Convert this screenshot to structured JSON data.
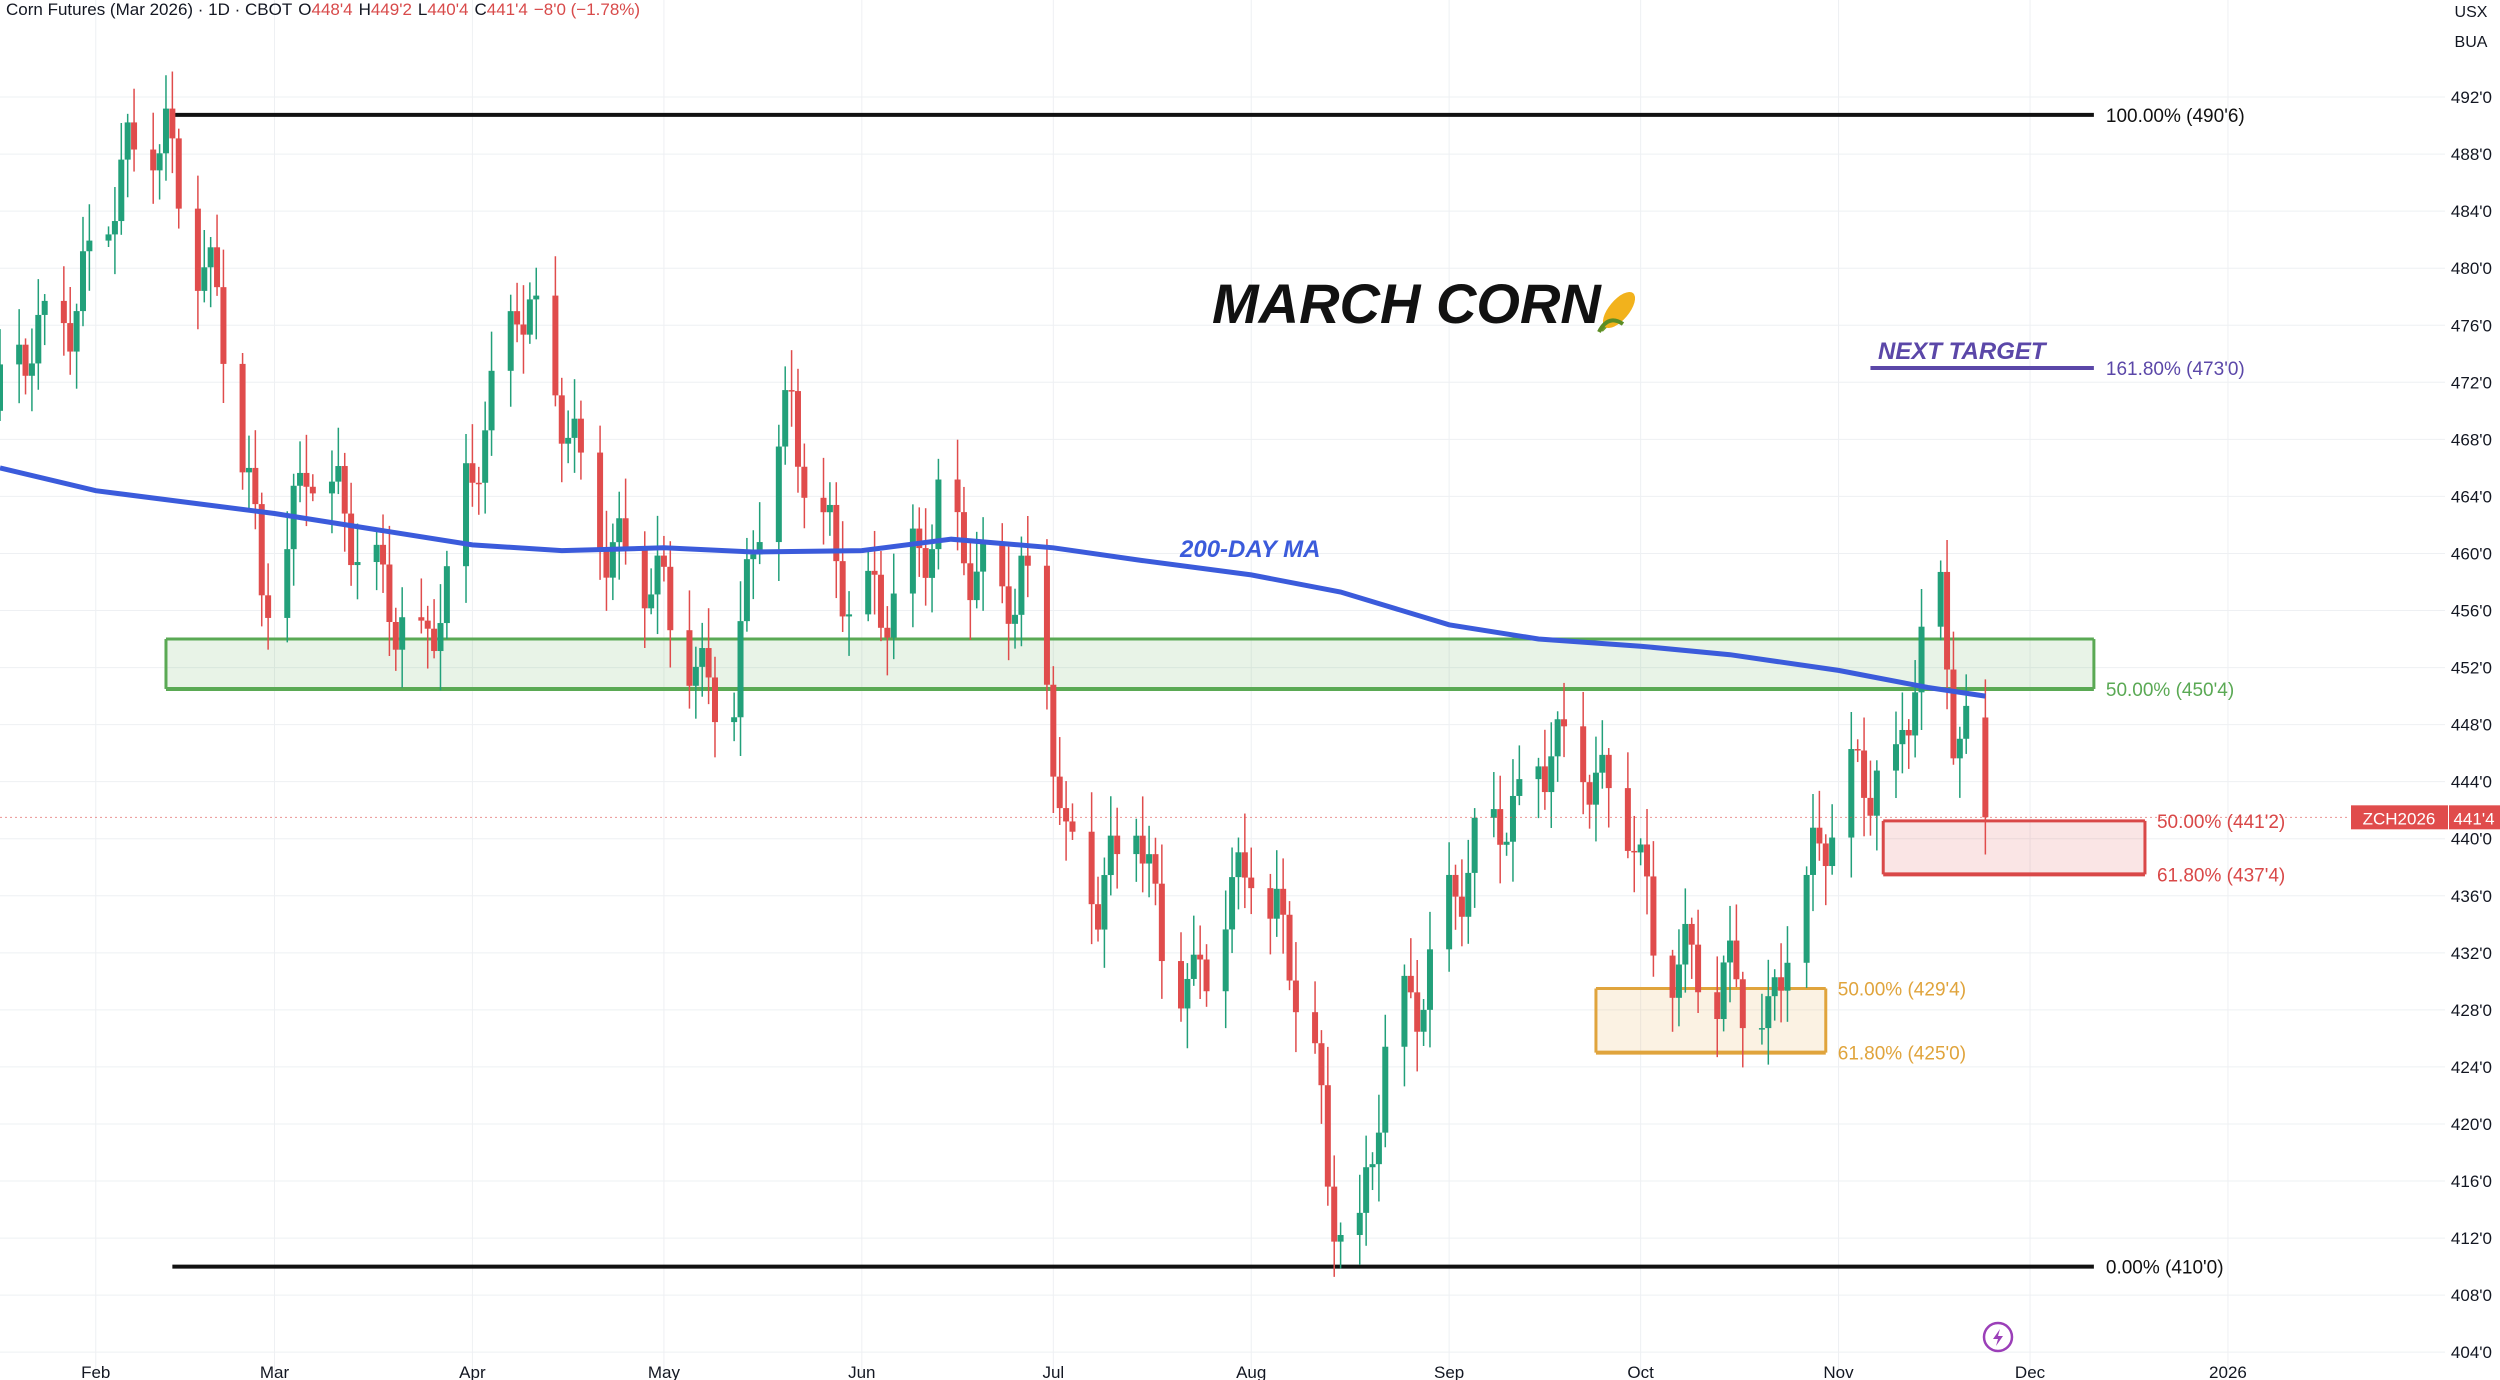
{
  "header": {
    "symbol_title": "Corn Futures (Mar 2026) · 1D · CBOT",
    "open_label": "O",
    "open": "448'4",
    "high_label": "H",
    "high": "449'2",
    "low_label": "L",
    "low": "440'4",
    "close_label": "C",
    "close": "441'4",
    "change": "−8'0 (−1.78%)"
  },
  "scale_buttons": [
    "USX",
    "BUA"
  ],
  "colors": {
    "up": "#22a07a",
    "down": "#e04c4c",
    "ma": "#3b5bdb",
    "fib_green": "#5aa954",
    "fib_red": "#d94848",
    "fib_orange": "#e0a43c",
    "target": "#5b47a8",
    "grid": "#eef0f3",
    "axis_text": "#131722"
  },
  "chart_data": {
    "type": "candlestick",
    "title": "MARCH CORN",
    "title_icon": "corn-icon",
    "ma_label": "200-DAY MA",
    "target_label": "NEXT TARGET",
    "y_ticks": [
      "492'0",
      "488'0",
      "484'0",
      "480'0",
      "476'0",
      "472'0",
      "468'0",
      "464'0",
      "460'0",
      "456'0",
      "452'0",
      "448'0",
      "444'0",
      "440'0",
      "436'0",
      "432'0",
      "428'0",
      "424'0",
      "420'0",
      "416'0",
      "412'0",
      "408'0",
      "404'0"
    ],
    "y_tick_values": [
      492,
      488,
      484,
      480,
      476,
      472,
      468,
      464,
      460,
      456,
      452,
      448,
      444,
      440,
      436,
      432,
      428,
      424,
      420,
      416,
      412,
      408,
      404
    ],
    "ylim": [
      402.4,
      496
    ],
    "x_ticks": [
      {
        "label": "Feb",
        "date": "2025-02-01"
      },
      {
        "label": "Mar",
        "date": "2025-03-01"
      },
      {
        "label": "Apr",
        "date": "2025-04-01"
      },
      {
        "label": "May",
        "date": "2025-05-01"
      },
      {
        "label": "Jun",
        "date": "2025-06-01"
      },
      {
        "label": "Jul",
        "date": "2025-07-01"
      },
      {
        "label": "Aug",
        "date": "2025-08-01"
      },
      {
        "label": "Sep",
        "date": "2025-09-01"
      },
      {
        "label": "Oct",
        "date": "2025-10-01"
      },
      {
        "label": "Nov",
        "date": "2025-11-01"
      },
      {
        "label": "Dec",
        "date": "2025-12-01"
      },
      {
        "label": "2026",
        "date": "2026-01-01"
      }
    ],
    "xlim": [
      "2025-01-17",
      "2026-02-04"
    ],
    "price_path": {
      "dates": [
        "2025-01-17",
        "2025-01-22",
        "2025-01-28",
        "2025-02-03",
        "2025-02-07",
        "2025-02-12",
        "2025-02-17",
        "2025-02-20",
        "2025-02-24",
        "2025-02-27",
        "2025-03-03",
        "2025-03-06",
        "2025-03-10",
        "2025-03-14",
        "2025-03-19",
        "2025-03-24",
        "2025-03-28",
        "2025-04-02",
        "2025-04-08",
        "2025-04-14",
        "2025-04-18",
        "2025-04-22",
        "2025-04-28",
        "2025-05-02",
        "2025-05-07",
        "2025-05-12",
        "2025-05-16",
        "2025-05-21",
        "2025-05-27",
        "2025-05-30",
        "2025-06-04",
        "2025-06-09",
        "2025-06-13",
        "2025-06-18",
        "2025-06-23",
        "2025-06-26",
        "2025-06-30",
        "2025-07-03",
        "2025-07-08",
        "2025-07-14",
        "2025-07-18",
        "2025-07-23",
        "2025-07-28",
        "2025-08-01",
        "2025-08-06",
        "2025-08-11",
        "2025-08-13",
        "2025-08-18",
        "2025-08-22",
        "2025-08-27",
        "2025-09-02",
        "2025-09-08",
        "2025-09-12",
        "2025-09-17",
        "2025-09-22",
        "2025-09-25",
        "2025-09-30",
        "2025-10-03",
        "2025-10-08",
        "2025-10-13",
        "2025-10-16",
        "2025-10-21",
        "2025-10-24",
        "2025-10-29",
        "2025-11-03",
        "2025-11-07",
        "2025-11-10",
        "2025-11-13",
        "2025-11-17",
        "2025-11-19",
        "2025-11-21",
        "2025-11-24"
      ],
      "values": [
        470,
        474,
        478,
        484,
        487,
        490,
        482,
        477,
        466,
        458,
        462,
        467,
        463,
        460,
        458,
        453,
        456,
        468,
        479,
        470,
        466,
        462,
        458,
        455,
        452,
        451,
        462,
        470,
        462,
        456,
        455,
        460,
        464,
        458,
        456,
        460,
        452,
        438,
        435,
        444,
        432,
        428,
        436,
        440,
        432,
        424,
        416,
        413,
        424,
        428,
        438,
        440,
        441,
        448,
        446,
        442,
        440,
        434,
        432,
        428,
        430,
        428,
        434,
        438,
        444,
        446,
        445,
        451,
        455,
        448,
        448,
        441
      ]
    },
    "ma_200": {
      "dates": [
        "2025-01-17",
        "2025-02-01",
        "2025-03-01",
        "2025-04-01",
        "2025-04-15",
        "2025-05-01",
        "2025-05-15",
        "2025-06-01",
        "2025-06-15",
        "2025-07-01",
        "2025-07-15",
        "2025-08-01",
        "2025-08-15",
        "2025-09-01",
        "2025-09-15",
        "2025-10-01",
        "2025-10-15",
        "2025-11-01",
        "2025-11-15",
        "2025-11-24"
      ],
      "values": [
        466,
        464.4,
        462.8,
        460.6,
        460.2,
        460.4,
        460.1,
        460.2,
        461,
        460.4,
        459.5,
        458.5,
        457.3,
        455,
        454,
        453.5,
        452.9,
        451.8,
        450.6,
        450
      ]
    },
    "fib_levels": [
      {
        "label": "100.00% (490'6)",
        "value": 490.75,
        "color": "#111111",
        "from": "2025-02-13",
        "to": "2025-12-11"
      },
      {
        "label": "0.00% (410'0)",
        "value": 410,
        "color": "#111111",
        "from": "2025-02-13",
        "to": "2025-12-11"
      },
      {
        "label": "161.80% (473'0)",
        "value": 473,
        "color": "#5b47a8",
        "from": "2025-11-06",
        "to": "2025-12-11"
      }
    ],
    "zones": [
      {
        "name": "green-fib-zone",
        "top": 454.0,
        "bottom": 450.5,
        "from": "2025-02-12",
        "to": "2025-12-11",
        "color": "#5aa954",
        "label": "50.00% (450'4)",
        "label_value": 450.5
      },
      {
        "name": "red-fib-zone",
        "top": 441.25,
        "bottom": 437.5,
        "from": "2025-11-08",
        "to": "2025-12-19",
        "color": "#d94848",
        "labels": [
          {
            "text": "50.00% (441'2)",
            "value": 441.25
          },
          {
            "text": "61.80% (437'4)",
            "value": 437.5
          }
        ]
      },
      {
        "name": "orange-fib-zone",
        "top": 429.5,
        "bottom": 425.0,
        "from": "2025-09-24",
        "to": "2025-10-30",
        "color": "#e0a43c",
        "labels": [
          {
            "text": "50.00% (429'4)",
            "value": 429.5
          },
          {
            "text": "61.80% (425'0)",
            "value": 425.0
          }
        ]
      }
    ],
    "last_price": {
      "symbol": "ZCH2026",
      "value": "441'4",
      "price": 441.5
    }
  },
  "bottom_icon": "lightning-icon"
}
